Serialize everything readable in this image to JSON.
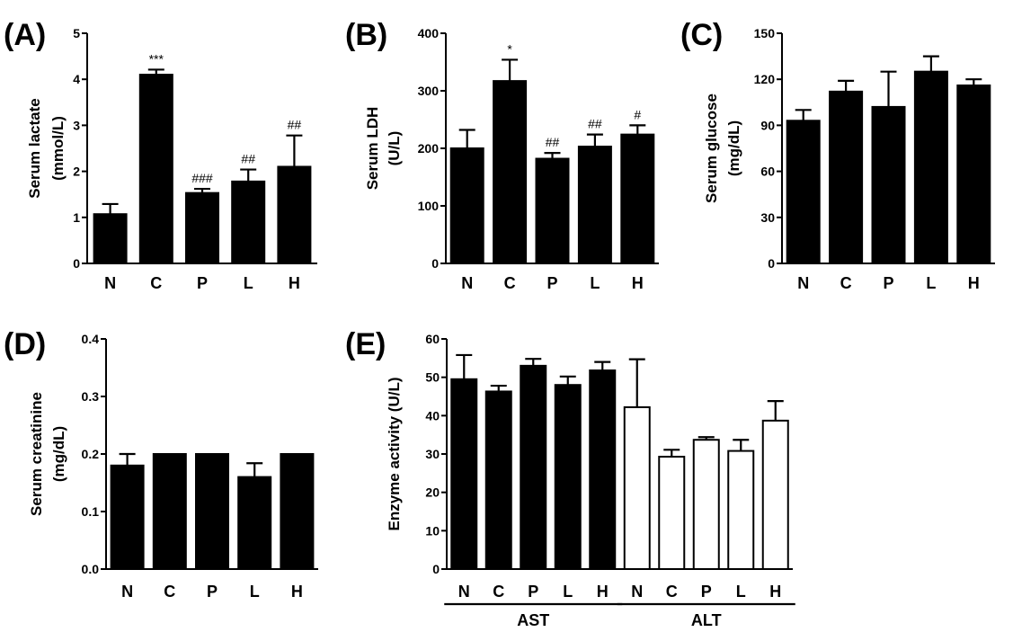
{
  "chart_data": [
    {
      "id": "A",
      "type": "bar",
      "panel_label": "(A)",
      "title": "",
      "xlabel": "",
      "ylabel_lines": [
        "Serum lactate",
        "(mmol/L)"
      ],
      "ylim": [
        0,
        5
      ],
      "yticks": [
        "0",
        "1",
        "2",
        "3",
        "4",
        "5"
      ],
      "categories": [
        "N",
        "C",
        "P",
        "L",
        "H"
      ],
      "values": [
        1.07,
        4.1,
        1.53,
        1.78,
        2.1
      ],
      "errors": [
        0.22,
        0.11,
        0.09,
        0.26,
        0.68
      ],
      "annotations": [
        "",
        "***",
        "###",
        "##",
        "##"
      ],
      "bar_fills": [
        "#000000",
        "#000000",
        "#000000",
        "#000000",
        "#000000"
      ]
    },
    {
      "id": "B",
      "type": "bar",
      "panel_label": "(B)",
      "title": "",
      "xlabel": "",
      "ylabel_lines": [
        "Serum LDH",
        "(U/L)"
      ],
      "ylim": [
        0,
        400
      ],
      "yticks": [
        "0",
        "100",
        "200",
        "300",
        "400"
      ],
      "categories": [
        "N",
        "C",
        "P",
        "L",
        "H"
      ],
      "values": [
        200,
        317,
        182,
        203,
        224
      ],
      "errors": [
        32,
        37,
        10,
        21,
        16
      ],
      "annotations": [
        "",
        "*",
        "##",
        "##",
        "#"
      ],
      "bar_fills": [
        "#000000",
        "#000000",
        "#000000",
        "#000000",
        "#000000"
      ]
    },
    {
      "id": "C",
      "type": "bar",
      "panel_label": "(C)",
      "title": "",
      "xlabel": "",
      "ylabel_lines": [
        "Serum glucose",
        "(mg/dL)"
      ],
      "ylim": [
        0,
        150
      ],
      "yticks": [
        "0",
        "30",
        "60",
        "90",
        "120",
        "150"
      ],
      "categories": [
        "N",
        "C",
        "P",
        "L",
        "H"
      ],
      "values": [
        93,
        112,
        102,
        125,
        116
      ],
      "errors": [
        7,
        7,
        23,
        10,
        4
      ],
      "annotations": [
        "",
        "",
        "",
        "",
        ""
      ],
      "bar_fills": [
        "#000000",
        "#000000",
        "#000000",
        "#000000",
        "#000000"
      ]
    },
    {
      "id": "D",
      "type": "bar",
      "panel_label": "(D)",
      "title": "",
      "xlabel": "",
      "ylabel_lines": [
        "Serum creatinine",
        "(mg/dL)"
      ],
      "ylim": [
        0,
        0.4
      ],
      "yticks": [
        "0.0",
        "0.1",
        "0.2",
        "0.3",
        "0.4"
      ],
      "categories": [
        "N",
        "C",
        "P",
        "L",
        "H"
      ],
      "values": [
        0.18,
        0.2,
        0.2,
        0.16,
        0.2
      ],
      "errors": [
        0.02,
        0,
        0,
        0.024,
        0
      ],
      "annotations": [
        "",
        "",
        "",
        "",
        ""
      ],
      "bar_fills": [
        "#000000",
        "#000000",
        "#000000",
        "#000000",
        "#000000"
      ]
    },
    {
      "id": "E",
      "type": "bar",
      "panel_label": "(E)",
      "title": "",
      "xlabel": "",
      "ylabel_lines": [
        "Enzyme activity (U/L)"
      ],
      "ylim": [
        0,
        60
      ],
      "yticks": [
        "0",
        "10",
        "20",
        "30",
        "40",
        "50",
        "60"
      ],
      "categories": [
        "N",
        "C",
        "P",
        "L",
        "H",
        "N",
        "C",
        "P",
        "L",
        "H"
      ],
      "values": [
        49.5,
        46.3,
        53,
        48,
        51.8,
        42.2,
        29.3,
        33.7,
        30.8,
        38.7
      ],
      "errors": [
        6.3,
        1.5,
        1.8,
        2.2,
        2.2,
        12.5,
        1.8,
        0.7,
        2.9,
        5.1
      ],
      "annotations": [
        "",
        "",
        "",
        "",
        "",
        "",
        "",
        "",
        "",
        ""
      ],
      "bar_fills": [
        "#000000",
        "#000000",
        "#000000",
        "#000000",
        "#000000",
        "#ffffff",
        "#ffffff",
        "#ffffff",
        "#ffffff",
        "#ffffff"
      ],
      "groups": [
        {
          "label": "AST",
          "start": 0,
          "end": 4
        },
        {
          "label": "ALT",
          "start": 5,
          "end": 9
        }
      ]
    }
  ]
}
